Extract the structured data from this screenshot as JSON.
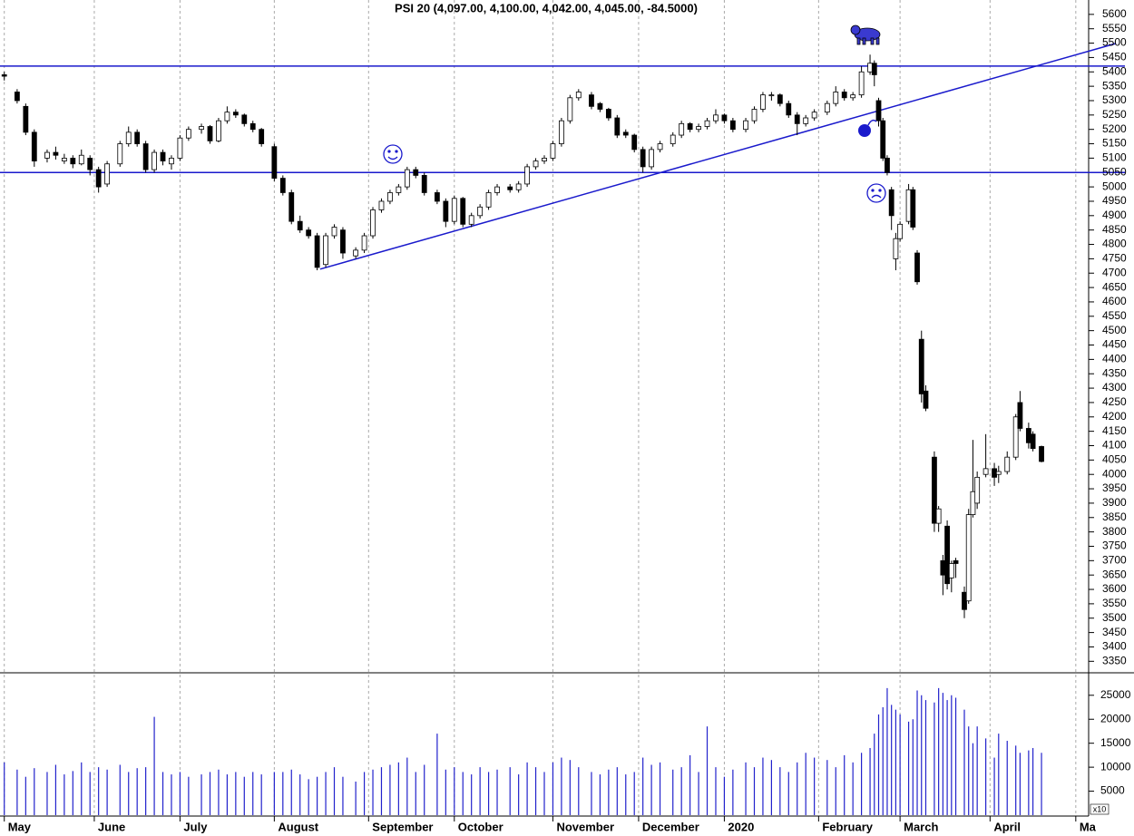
{
  "chart_data": {
    "type": "candlestick",
    "title": "PSI 20 (4,097.00, 4,100.00, 4,042.00, 4,045.00, -84.5000)",
    "xlim": [
      0,
      254
    ],
    "xticks": [
      {
        "value": 1,
        "label": "May"
      },
      {
        "value": 22,
        "label": "June"
      },
      {
        "value": 42,
        "label": "July"
      },
      {
        "value": 64,
        "label": "August"
      },
      {
        "value": 86,
        "label": "September"
      },
      {
        "value": 106,
        "label": "October"
      },
      {
        "value": 129,
        "label": "November"
      },
      {
        "value": 149,
        "label": "December"
      },
      {
        "value": 169,
        "label": "2020"
      },
      {
        "value": 191,
        "label": "February"
      },
      {
        "value": 210,
        "label": "March"
      },
      {
        "value": 231,
        "label": "April"
      },
      {
        "value": 251,
        "label": "Ma"
      }
    ],
    "ylim": [
      3310,
      5650
    ],
    "yticks": [
      5600,
      5550,
      5500,
      5450,
      5400,
      5350,
      5300,
      5250,
      5200,
      5150,
      5100,
      5050,
      5000,
      4950,
      4900,
      4850,
      4800,
      4750,
      4700,
      4650,
      4600,
      4550,
      4500,
      4450,
      4400,
      4350,
      4300,
      4250,
      4200,
      4150,
      4100,
      4050,
      4000,
      3950,
      3900,
      3850,
      3800,
      3750,
      3700,
      3650,
      3600,
      3550,
      3500,
      3450,
      3400,
      3350
    ],
    "up_color": "#ffffff",
    "down_color": "#000000",
    "edge_color": "#000000",
    "line_color": "#1a1acc",
    "volume_color": "#2222cc",
    "x": [
      1,
      4,
      6,
      8,
      11,
      13,
      15,
      17,
      19,
      21,
      23,
      25,
      28,
      30,
      32,
      34,
      36,
      38,
      40,
      42,
      44,
      47,
      49,
      51,
      53,
      55,
      57,
      59,
      61,
      64,
      66,
      68,
      70,
      72,
      74,
      76,
      78,
      80,
      83,
      85,
      87,
      89,
      91,
      93,
      95,
      97,
      99,
      102,
      104,
      106,
      108,
      110,
      112,
      114,
      116,
      119,
      121,
      123,
      125,
      127,
      129,
      131,
      133,
      135,
      138,
      140,
      142,
      144,
      146,
      148,
      150,
      152,
      154,
      157,
      159,
      161,
      163,
      165,
      167,
      169,
      171,
      174,
      176,
      178,
      180,
      182,
      184,
      186,
      188,
      190,
      193,
      195,
      197,
      199,
      201,
      203,
      204,
      205,
      206,
      207,
      208,
      209,
      210,
      212,
      213,
      214,
      215,
      216,
      218,
      219,
      220,
      221,
      222,
      223,
      225,
      226,
      227,
      228,
      230,
      232,
      233,
      235,
      237,
      238,
      240,
      241,
      243
    ],
    "ohlc": [
      [
        5390,
        5400,
        5370,
        5385
      ],
      [
        5330,
        5340,
        5290,
        5300
      ],
      [
        5280,
        5290,
        5180,
        5190
      ],
      [
        5190,
        5200,
        5070,
        5090
      ],
      [
        5100,
        5130,
        5085,
        5120
      ],
      [
        5120,
        5140,
        5095,
        5110
      ],
      [
        5090,
        5115,
        5080,
        5100
      ],
      [
        5100,
        5110,
        5065,
        5080
      ],
      [
        5080,
        5130,
        5075,
        5110
      ],
      [
        5100,
        5110,
        5040,
        5060
      ],
      [
        5060,
        5070,
        4980,
        5000
      ],
      [
        5010,
        5090,
        5000,
        5080
      ],
      [
        5080,
        5160,
        5070,
        5150
      ],
      [
        5150,
        5210,
        5140,
        5190
      ],
      [
        5190,
        5200,
        5140,
        5150
      ],
      [
        5150,
        5160,
        5050,
        5060
      ],
      [
        5060,
        5130,
        5050,
        5120
      ],
      [
        5120,
        5130,
        5075,
        5090
      ],
      [
        5080,
        5110,
        5060,
        5100
      ],
      [
        5100,
        5180,
        5090,
        5170
      ],
      [
        5170,
        5210,
        5160,
        5200
      ],
      [
        5200,
        5220,
        5185,
        5210
      ],
      [
        5210,
        5215,
        5150,
        5160
      ],
      [
        5160,
        5240,
        5155,
        5230
      ],
      [
        5230,
        5280,
        5220,
        5260
      ],
      [
        5260,
        5270,
        5240,
        5250
      ],
      [
        5250,
        5255,
        5210,
        5220
      ],
      [
        5220,
        5230,
        5190,
        5200
      ],
      [
        5200,
        5205,
        5140,
        5150
      ],
      [
        5140,
        5150,
        5020,
        5030
      ],
      [
        5030,
        5040,
        4970,
        4980
      ],
      [
        4980,
        4990,
        4870,
        4880
      ],
      [
        4880,
        4900,
        4840,
        4850
      ],
      [
        4850,
        4860,
        4820,
        4830
      ],
      [
        4830,
        4840,
        4710,
        4720
      ],
      [
        4730,
        4840,
        4720,
        4830
      ],
      [
        4830,
        4870,
        4820,
        4860
      ],
      [
        4850,
        4860,
        4750,
        4770
      ],
      [
        4760,
        4790,
        4750,
        4780
      ],
      [
        4780,
        4840,
        4770,
        4830
      ],
      [
        4830,
        4930,
        4820,
        4920
      ],
      [
        4920,
        4960,
        4910,
        4950
      ],
      [
        4950,
        4990,
        4940,
        4980
      ],
      [
        4980,
        5010,
        4970,
        5000
      ],
      [
        5000,
        5070,
        4990,
        5060
      ],
      [
        5060,
        5070,
        5030,
        5040
      ],
      [
        5040,
        5050,
        4970,
        4980
      ],
      [
        4980,
        4990,
        4940,
        4950
      ],
      [
        4950,
        4960,
        4860,
        4880
      ],
      [
        4880,
        4970,
        4870,
        4960
      ],
      [
        4960,
        4965,
        4860,
        4870
      ],
      [
        4870,
        4910,
        4860,
        4900
      ],
      [
        4900,
        4940,
        4890,
        4930
      ],
      [
        4930,
        4990,
        4920,
        4980
      ],
      [
        4980,
        5010,
        4970,
        5000
      ],
      [
        5000,
        5010,
        4980,
        4990
      ],
      [
        4990,
        5020,
        4980,
        5010
      ],
      [
        5010,
        5080,
        5000,
        5070
      ],
      [
        5070,
        5100,
        5060,
        5090
      ],
      [
        5090,
        5110,
        5080,
        5100
      ],
      [
        5100,
        5160,
        5090,
        5150
      ],
      [
        5150,
        5240,
        5140,
        5230
      ],
      [
        5230,
        5320,
        5220,
        5310
      ],
      [
        5310,
        5340,
        5300,
        5330
      ],
      [
        5320,
        5330,
        5270,
        5280
      ],
      [
        5290,
        5295,
        5260,
        5270
      ],
      [
        5270,
        5275,
        5230,
        5240
      ],
      [
        5240,
        5250,
        5170,
        5180
      ],
      [
        5190,
        5200,
        5170,
        5180
      ],
      [
        5180,
        5185,
        5120,
        5130
      ],
      [
        5130,
        5140,
        5050,
        5070
      ],
      [
        5070,
        5140,
        5060,
        5130
      ],
      [
        5130,
        5160,
        5120,
        5150
      ],
      [
        5150,
        5190,
        5140,
        5180
      ],
      [
        5180,
        5230,
        5170,
        5220
      ],
      [
        5220,
        5225,
        5190,
        5200
      ],
      [
        5200,
        5220,
        5190,
        5210
      ],
      [
        5210,
        5240,
        5200,
        5230
      ],
      [
        5230,
        5270,
        5220,
        5250
      ],
      [
        5250,
        5255,
        5220,
        5230
      ],
      [
        5230,
        5240,
        5190,
        5200
      ],
      [
        5200,
        5240,
        5190,
        5230
      ],
      [
        5230,
        5280,
        5220,
        5270
      ],
      [
        5270,
        5330,
        5260,
        5320
      ],
      [
        5320,
        5330,
        5300,
        5320
      ],
      [
        5320,
        5325,
        5280,
        5290
      ],
      [
        5290,
        5300,
        5240,
        5250
      ],
      [
        5250,
        5260,
        5180,
        5220
      ],
      [
        5220,
        5250,
        5210,
        5240
      ],
      [
        5240,
        5270,
        5230,
        5260
      ],
      [
        5260,
        5300,
        5250,
        5290
      ],
      [
        5290,
        5350,
        5280,
        5330
      ],
      [
        5330,
        5340,
        5300,
        5310
      ],
      [
        5310,
        5330,
        5300,
        5320
      ],
      [
        5320,
        5420,
        5310,
        5400
      ],
      [
        5400,
        5460,
        5390,
        5430
      ],
      [
        5430,
        5440,
        5350,
        5390
      ],
      [
        5300,
        5310,
        5210,
        5230
      ],
      [
        5230,
        5240,
        5090,
        5100
      ],
      [
        5100,
        5110,
        5040,
        5050
      ],
      [
        4990,
        5000,
        4850,
        4900
      ],
      [
        4750,
        4840,
        4710,
        4820
      ],
      [
        4820,
        4880,
        4810,
        4870
      ],
      [
        4880,
        5010,
        4870,
        4990
      ],
      [
        4990,
        5000,
        4850,
        4860
      ],
      [
        4770,
        4780,
        4660,
        4670
      ],
      [
        4470,
        4500,
        4250,
        4280
      ],
      [
        4290,
        4310,
        4220,
        4230
      ],
      [
        4060,
        4080,
        3800,
        3830
      ],
      [
        3830,
        3890,
        3800,
        3880
      ],
      [
        3700,
        3720,
        3580,
        3650
      ],
      [
        3820,
        3840,
        3600,
        3620
      ],
      [
        3640,
        3700,
        3590,
        3690
      ],
      [
        3700,
        3710,
        3640,
        3690
      ],
      [
        3590,
        3610,
        3500,
        3530
      ],
      [
        3560,
        3880,
        3550,
        3860
      ],
      [
        3860,
        4120,
        3850,
        3940
      ],
      [
        3900,
        4010,
        3880,
        3990
      ],
      [
        4000,
        4140,
        3990,
        4020
      ],
      [
        4020,
        4040,
        3960,
        3990
      ],
      [
        4000,
        4030,
        3970,
        4010
      ],
      [
        4010,
        4080,
        4000,
        4060
      ],
      [
        4060,
        4210,
        4050,
        4200
      ],
      [
        4250,
        4290,
        4150,
        4160
      ],
      [
        4160,
        4180,
        4090,
        4110
      ],
      [
        4140,
        4150,
        4080,
        4090
      ],
      [
        4097,
        4100,
        4042,
        4045
      ]
    ],
    "hlines": [
      5420,
      5050
    ],
    "trendline": {
      "x": [
        74.7,
        260.4
      ],
      "y": [
        4714,
        5499
      ]
    },
    "volume": {
      "label": "x10",
      "ylim": [
        0,
        29500
      ],
      "yticks": [
        5000,
        10000,
        15000,
        20000,
        25000
      ],
      "values": [
        11000,
        9500,
        8000,
        9800,
        9000,
        10500,
        8500,
        9200,
        11000,
        9000,
        10000,
        9500,
        10500,
        9000,
        9800,
        10000,
        20500,
        9000,
        8500,
        9000,
        8000,
        8500,
        9000,
        9500,
        8500,
        9000,
        8000,
        9000,
        8500,
        9000,
        9000,
        9500,
        8500,
        7500,
        8000,
        9000,
        10000,
        8000,
        7000,
        9000,
        9500,
        10000,
        10500,
        11000,
        12000,
        9000,
        10500,
        17000,
        9500,
        10000,
        9000,
        8500,
        10000,
        9000,
        9500,
        10000,
        8500,
        11000,
        10000,
        9000,
        11000,
        12000,
        11500,
        10000,
        9000,
        8500,
        9500,
        10000,
        8500,
        9000,
        12000,
        10500,
        11000,
        9500,
        10000,
        12500,
        9000,
        18500,
        10000,
        8000,
        9500,
        11000,
        10000,
        12000,
        11500,
        10000,
        9000,
        11000,
        13000,
        12000,
        11500,
        10000,
        12500,
        11000,
        13000,
        14000,
        17000,
        21000,
        22500,
        26500,
        23000,
        22000,
        21000,
        19500,
        20000,
        26000,
        25000,
        24000,
        23500,
        26500,
        25500,
        24000,
        25000,
        24500,
        22000,
        18500,
        15000,
        18500,
        16000,
        12000,
        17000,
        15500,
        14500,
        13000,
        13500,
        14000,
        13000
      ]
    }
  }
}
